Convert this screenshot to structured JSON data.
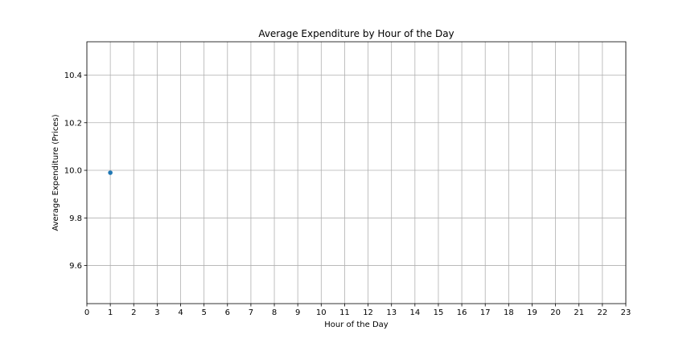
{
  "chart_data": {
    "type": "scatter",
    "title": "Average Expenditure by Hour of the Day",
    "xlabel": "Hour of the Day",
    "ylabel": "Average Expenditure (Prices)",
    "xlim": [
      0,
      23
    ],
    "ylim": [
      9.44,
      10.54
    ],
    "xticks": [
      0,
      1,
      2,
      3,
      4,
      5,
      6,
      7,
      8,
      9,
      10,
      11,
      12,
      13,
      14,
      15,
      16,
      17,
      18,
      19,
      20,
      21,
      22,
      23
    ],
    "yticks": [
      9.6,
      9.8,
      10.0,
      10.2,
      10.4
    ],
    "grid": true,
    "series": [
      {
        "x": [
          1
        ],
        "y": [
          9.99
        ],
        "color": "#1f77b4"
      }
    ]
  }
}
